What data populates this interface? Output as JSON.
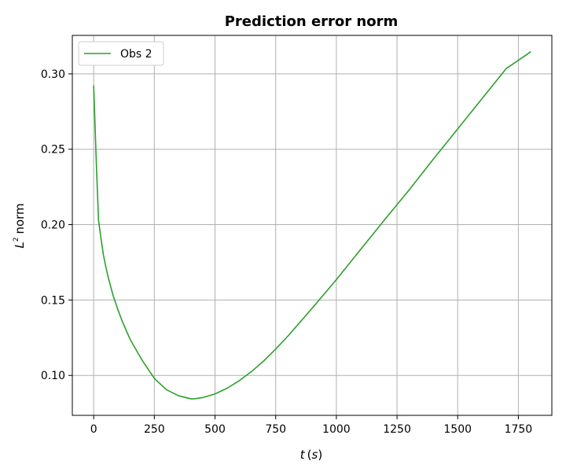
{
  "chart_data": {
    "type": "line",
    "title": "Prediction error norm",
    "xlabel_var": "t",
    "xlabel_unit": "(s)",
    "ylabel_base": "L",
    "ylabel_sup": "2",
    "ylabel_rest": "norm",
    "xlim": [
      -88,
      1888
    ],
    "ylim": [
      0.0735,
      0.3255
    ],
    "grid": true,
    "legend_position": "upper left",
    "x_ticks": [
      0,
      250,
      500,
      750,
      1000,
      1250,
      1500,
      1750
    ],
    "x_tick_labels": [
      "0",
      "250",
      "500",
      "750",
      "1000",
      "1250",
      "1500",
      "1750"
    ],
    "y_ticks": [
      0.1,
      0.15,
      0.2,
      0.25,
      0.3
    ],
    "y_tick_labels": [
      "0.10",
      "0.15",
      "0.20",
      "0.25",
      "0.30"
    ],
    "series": [
      {
        "name": "Obs 2",
        "color": "#2ca02c",
        "x": [
          0,
          10,
          20,
          30,
          40,
          50,
          60,
          80,
          100,
          120,
          150,
          180,
          200,
          250,
          300,
          350,
          400,
          415,
          450,
          500,
          550,
          600,
          650,
          700,
          750,
          800,
          900,
          1000,
          1100,
          1200,
          1300,
          1400,
          1500,
          1600,
          1700,
          1800
        ],
        "y": [
          0.292,
          0.245,
          0.203,
          0.191,
          0.18,
          0.172,
          0.165,
          0.153,
          0.1435,
          0.135,
          0.124,
          0.1155,
          0.11,
          0.098,
          0.0905,
          0.0865,
          0.0845,
          0.0845,
          0.0853,
          0.0877,
          0.0915,
          0.0965,
          0.1025,
          0.1095,
          0.1175,
          0.126,
          0.1445,
          0.1635,
          0.1835,
          0.2035,
          0.223,
          0.2435,
          0.2635,
          0.2835,
          0.3035,
          0.3145
        ]
      }
    ]
  }
}
